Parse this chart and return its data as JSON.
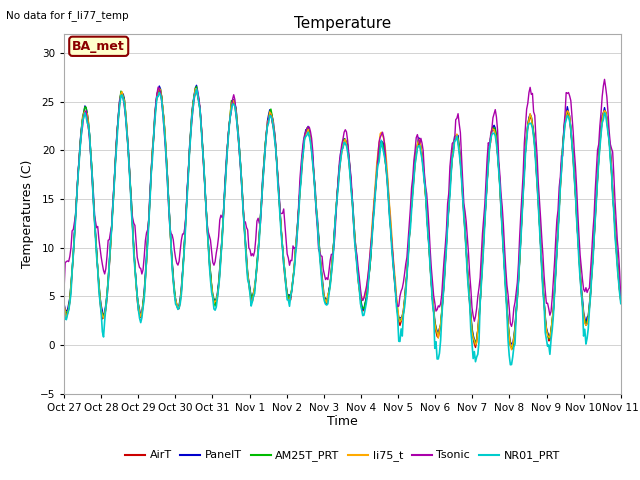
{
  "title": "Temperature",
  "ylabel": "Temperatures (C)",
  "xlabel": "Time",
  "top_left_note": "No data for f_li77_temp",
  "annotation_box": "BA_met",
  "ylim": [
    -5,
    32
  ],
  "yticks": [
    -5,
    0,
    5,
    10,
    15,
    20,
    25,
    30
  ],
  "xtick_labels": [
    "Oct 27",
    "Oct 28",
    "Oct 29",
    "Oct 30",
    "Oct 31",
    "Nov 1",
    "Nov 2",
    "Nov 3",
    "Nov 4",
    "Nov 5",
    "Nov 6",
    "Nov 7",
    "Nov 8",
    "Nov 9",
    "Nov 10",
    "Nov 11"
  ],
  "series": [
    {
      "label": "AirT",
      "color": "#cc0000",
      "lw": 1.0
    },
    {
      "label": "PanelT",
      "color": "#0000cc",
      "lw": 1.0
    },
    {
      "label": "AM25T_PRT",
      "color": "#00bb00",
      "lw": 1.0
    },
    {
      "label": "li75_t",
      "color": "#ffaa00",
      "lw": 1.0
    },
    {
      "label": "Tsonic",
      "color": "#aa00aa",
      "lw": 1.0
    },
    {
      "label": "NR01_PRT",
      "color": "#00cccc",
      "lw": 1.2
    }
  ],
  "n_points": 480,
  "seed": 7
}
